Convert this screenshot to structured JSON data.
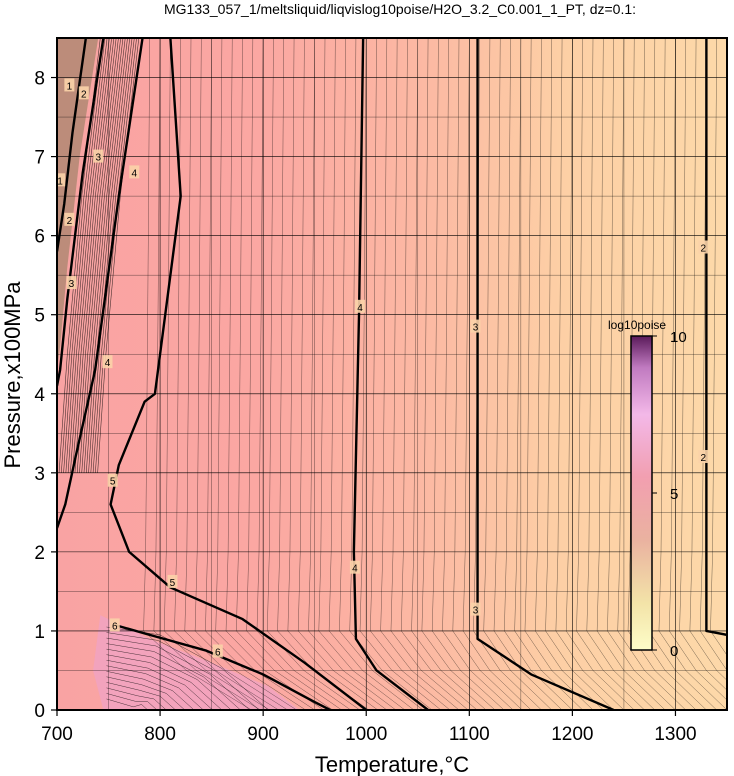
{
  "chart_data": {
    "type": "heatmap",
    "title": "MG133_057_1/meltsliquid/liqvislog10poise/H2O_3.2_C0.001_1_PT, dz=0.1:",
    "xlabel": "Temperature,°C",
    "ylabel": "Pressure,x100MPa",
    "xlim": [
      700,
      1350
    ],
    "ylim": [
      0,
      8.5
    ],
    "x_ticks": [
      "700",
      "800",
      "900",
      "1000",
      "1100",
      "1200",
      "1300"
    ],
    "y_ticks": [
      "0",
      "1",
      "2",
      "3",
      "4",
      "5",
      "6",
      "7",
      "8"
    ],
    "x_tick_values": [
      700,
      800,
      900,
      1000,
      1100,
      1200,
      1300
    ],
    "y_tick_values": [
      0,
      1,
      2,
      3,
      4,
      5,
      6,
      7,
      8
    ],
    "grid": true,
    "colorbar": {
      "label": "log10poise",
      "range": [
        0,
        10
      ],
      "ticks": [
        "0",
        "5",
        "10"
      ],
      "tick_values": [
        0,
        5,
        10
      ],
      "colors": [
        "#fdfdc8",
        "#e8c9a0",
        "#c98a8a",
        "#9a4f7a",
        "#5a1a5a"
      ]
    },
    "bold_contours": [
      {
        "label": "2",
        "points": [
          [
            1330,
            8.5
          ],
          [
            1330,
            1.0
          ],
          [
            1350,
            0.95
          ]
        ]
      },
      {
        "label": "3",
        "points": [
          [
            1108,
            8.5
          ],
          [
            1108,
            0.9
          ],
          [
            1160,
            0.45
          ],
          [
            1240,
            0.0
          ]
        ]
      },
      {
        "label": "4",
        "points": [
          [
            997,
            8.5
          ],
          [
            993,
            5.0
          ],
          [
            988,
            2.0
          ],
          [
            990,
            0.9
          ],
          [
            1010,
            0.5
          ],
          [
            1060,
            0.0
          ]
        ]
      },
      {
        "label": "4",
        "points": [
          [
            783,
            8.5
          ],
          [
            760,
            6.5
          ],
          [
            737,
            4.3
          ],
          [
            718,
            3.2
          ],
          [
            708,
            2.6
          ],
          [
            700,
            2.3
          ]
        ]
      },
      {
        "label": "5",
        "points": [
          [
            810,
            8.5
          ],
          [
            820,
            6.5
          ],
          [
            795,
            4.0
          ],
          [
            785,
            3.9
          ],
          [
            760,
            3.1
          ],
          [
            752,
            2.6
          ],
          [
            770,
            2.0
          ],
          [
            810,
            1.55
          ],
          [
            880,
            1.15
          ],
          [
            940,
            0.6
          ],
          [
            990,
            0.1
          ],
          [
            1000,
            0.0
          ]
        ]
      },
      {
        "label": "6",
        "points": [
          [
            755,
            1.08
          ],
          [
            790,
            0.95
          ],
          [
            845,
            0.75
          ],
          [
            900,
            0.45
          ],
          [
            950,
            0.1
          ],
          [
            965,
            0.0
          ]
        ]
      },
      {
        "label": "3",
        "points": [
          [
            745,
            8.5
          ],
          [
            725,
            6.8
          ],
          [
            710,
            5.2
          ],
          [
            703,
            4.3
          ],
          [
            700,
            4.1
          ]
        ]
      },
      {
        "label": "2",
        "points": [
          [
            728,
            8.5
          ],
          [
            715,
            7.3
          ],
          [
            707,
            6.4
          ],
          [
            700,
            5.8
          ]
        ]
      }
    ],
    "contour_labels": [
      {
        "text": "2",
        "x": 1327,
        "y": 5.85
      },
      {
        "text": "2",
        "x": 1327,
        "y": 3.2
      },
      {
        "text": "3",
        "x": 1106,
        "y": 4.85
      },
      {
        "text": "3",
        "x": 1106,
        "y": 1.27
      },
      {
        "text": "4",
        "x": 994,
        "y": 5.1
      },
      {
        "text": "4",
        "x": 989,
        "y": 1.8
      },
      {
        "text": "4",
        "x": 775,
        "y": 6.8
      },
      {
        "text": "4",
        "x": 749,
        "y": 4.4
      },
      {
        "text": "5",
        "x": 754,
        "y": 2.9
      },
      {
        "text": "5",
        "x": 812,
        "y": 1.62
      },
      {
        "text": "6",
        "x": 756,
        "y": 1.07
      },
      {
        "text": "6",
        "x": 856,
        "y": 0.74
      },
      {
        "text": "3",
        "x": 740,
        "y": 7.0
      },
      {
        "text": "3",
        "x": 714,
        "y": 5.4
      },
      {
        "text": "2",
        "x": 726,
        "y": 7.8
      },
      {
        "text": "2",
        "x": 712,
        "y": 6.2
      },
      {
        "text": "1",
        "x": 712,
        "y": 7.9
      },
      {
        "text": "1",
        "x": 703,
        "y": 6.7
      }
    ]
  }
}
